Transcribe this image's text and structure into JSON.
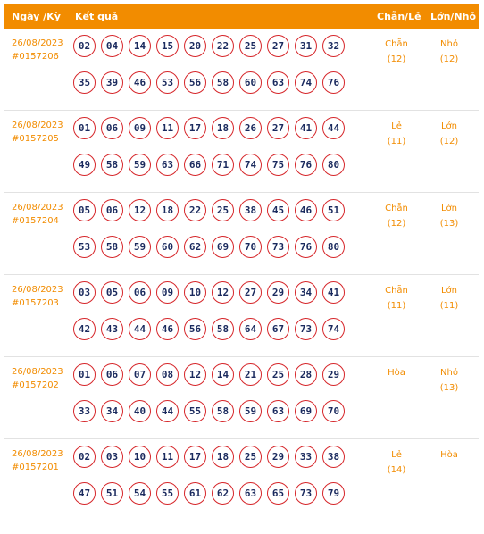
{
  "header": {
    "date": "Ngày /Kỳ",
    "result": "Kết quả",
    "even_odd": "Chẵn/Lẻ",
    "big_small": "Lớn/Nhỏ"
  },
  "rows": [
    {
      "date": "26/08/2023",
      "period": "#0157206",
      "numbers": [
        "02",
        "04",
        "14",
        "15",
        "20",
        "22",
        "25",
        "27",
        "31",
        "32",
        "35",
        "39",
        "46",
        "53",
        "56",
        "58",
        "60",
        "63",
        "74",
        "76"
      ],
      "even_odd": "Chẵn",
      "even_odd_count": "(12)",
      "big_small": "Nhỏ",
      "big_small_count": "(12)"
    },
    {
      "date": "26/08/2023",
      "period": "#0157205",
      "numbers": [
        "01",
        "06",
        "09",
        "11",
        "17",
        "18",
        "26",
        "27",
        "41",
        "44",
        "49",
        "58",
        "59",
        "63",
        "66",
        "71",
        "74",
        "75",
        "76",
        "80"
      ],
      "even_odd": "Lẻ",
      "even_odd_count": "(11)",
      "big_small": "Lớn",
      "big_small_count": "(12)"
    },
    {
      "date": "26/08/2023",
      "period": "#0157204",
      "numbers": [
        "05",
        "06",
        "12",
        "18",
        "22",
        "25",
        "38",
        "45",
        "46",
        "51",
        "53",
        "58",
        "59",
        "60",
        "62",
        "69",
        "70",
        "73",
        "76",
        "80"
      ],
      "even_odd": "Chẵn",
      "even_odd_count": "(12)",
      "big_small": "Lớn",
      "big_small_count": "(13)"
    },
    {
      "date": "26/08/2023",
      "period": "#0157203",
      "numbers": [
        "03",
        "05",
        "06",
        "09",
        "10",
        "12",
        "27",
        "29",
        "34",
        "41",
        "42",
        "43",
        "44",
        "46",
        "56",
        "58",
        "64",
        "67",
        "73",
        "74"
      ],
      "even_odd": "Chẵn",
      "even_odd_count": "(11)",
      "big_small": "Lớn",
      "big_small_count": "(11)"
    },
    {
      "date": "26/08/2023",
      "period": "#0157202",
      "numbers": [
        "01",
        "06",
        "07",
        "08",
        "12",
        "14",
        "21",
        "25",
        "28",
        "29",
        "33",
        "34",
        "40",
        "44",
        "55",
        "58",
        "59",
        "63",
        "69",
        "70"
      ],
      "even_odd": "Hòa",
      "even_odd_count": "",
      "big_small": "Nhỏ",
      "big_small_count": "(13)"
    },
    {
      "date": "26/08/2023",
      "period": "#0157201",
      "numbers": [
        "02",
        "03",
        "10",
        "11",
        "17",
        "18",
        "25",
        "29",
        "33",
        "38",
        "47",
        "51",
        "54",
        "55",
        "61",
        "62",
        "63",
        "65",
        "73",
        "79"
      ],
      "even_odd": "Lẻ",
      "even_odd_count": "(14)",
      "big_small": "Hòa",
      "big_small_count": ""
    }
  ]
}
